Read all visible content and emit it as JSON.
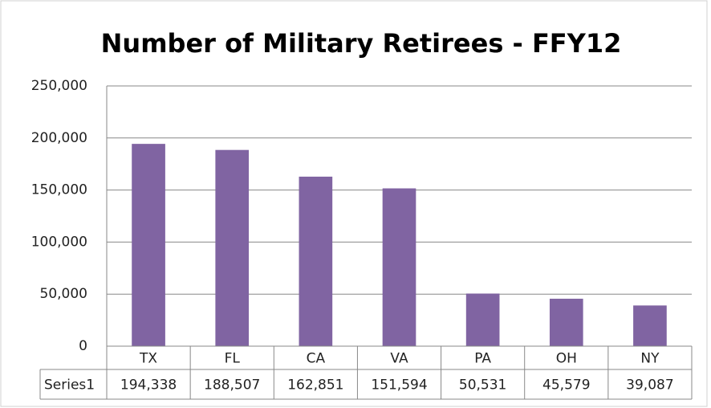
{
  "chart_data": {
    "type": "bar",
    "title": "Number of Military Retirees - FFY12",
    "categories": [
      "TX",
      "FL",
      "CA",
      "VA",
      "PA",
      "OH",
      "NY"
    ],
    "series": [
      {
        "name": "Series1",
        "color": "#8064a2",
        "values": [
          194338,
          188507,
          162851,
          151594,
          50531,
          45579,
          39087
        ],
        "value_labels": [
          "194,338",
          "188,507",
          "162,851",
          "151,594",
          "50,531",
          "45,579",
          "39,087"
        ]
      }
    ],
    "ylim": [
      0,
      250000
    ],
    "yticks": [
      0,
      {
        "value": 50000,
        "label": "50,000"
      },
      {
        "value": 100000,
        "label": "100,000"
      },
      {
        "value": 150000,
        "label": "150,000"
      },
      {
        "value": 200000,
        "label": "200,000"
      },
      {
        "value": 250000,
        "label": "250,000"
      }
    ],
    "grid": true
  }
}
